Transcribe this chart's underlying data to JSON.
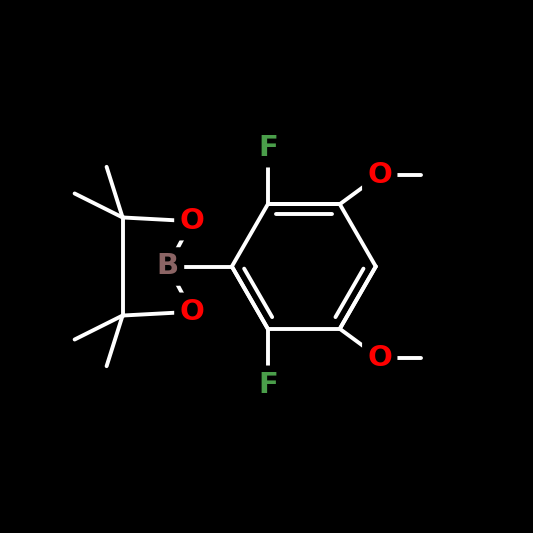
{
  "background_color": "#000000",
  "bond_color": "#ffffff",
  "atom_colors": {
    "B": "#8B6464",
    "O": "#ff0000",
    "F": "#4a9e4a",
    "C": "#ffffff"
  },
  "bond_width": 2.8,
  "figsize": [
    5.33,
    5.33
  ],
  "dpi": 100,
  "xlim": [
    0,
    10
  ],
  "ylim": [
    0,
    10
  ]
}
